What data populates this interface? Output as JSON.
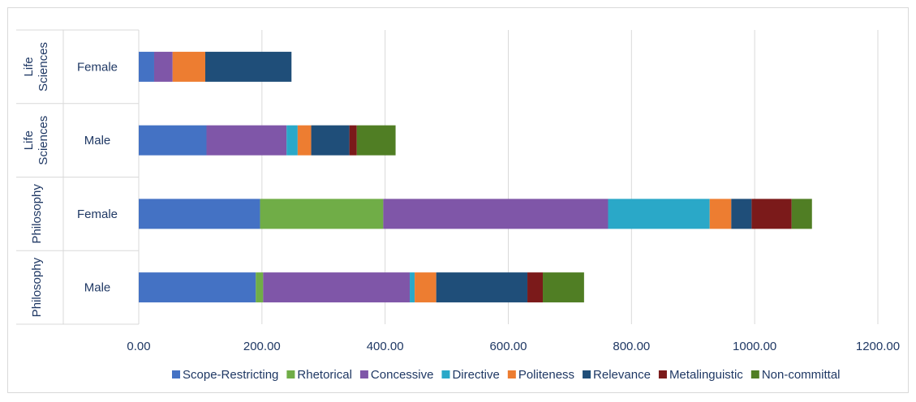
{
  "chart_data": {
    "type": "bar",
    "orientation": "horizontal",
    "stacked": true,
    "title": "",
    "xlabel": "",
    "ylabel": "",
    "xlim": [
      0,
      1200
    ],
    "x_ticks": [
      "0.00",
      "200.00",
      "400.00",
      "600.00",
      "800.00",
      "1000.00",
      "1200.00"
    ],
    "grid": true,
    "legend_position": "bottom",
    "categories": [
      {
        "group": "Life Sciences",
        "label": "Female"
      },
      {
        "group": "Life Sciences",
        "label": "Male"
      },
      {
        "group": "Philosophy",
        "label": "Female"
      },
      {
        "group": "Philosophy",
        "label": "Male"
      }
    ],
    "series": [
      {
        "name": "Scope-Restricting",
        "color": "#4472c4",
        "values": [
          25,
          110,
          197,
          190
        ]
      },
      {
        "name": "Rhetorical",
        "color": "#70ad47",
        "values": [
          0,
          0,
          200,
          12
        ]
      },
      {
        "name": "Concessive",
        "color": "#7f56a8",
        "values": [
          30,
          130,
          365,
          238
        ]
      },
      {
        "name": "Directive",
        "color": "#2aa8c8",
        "values": [
          0,
          18,
          165,
          8
        ]
      },
      {
        "name": "Politeness",
        "color": "#ed7d31",
        "values": [
          53,
          22,
          35,
          35
        ]
      },
      {
        "name": "Relevance",
        "color": "#1f4e79",
        "values": [
          140,
          62,
          33,
          148
        ]
      },
      {
        "name": "Metalinguistic",
        "color": "#7b1a1a",
        "values": [
          0,
          12,
          65,
          25
        ]
      },
      {
        "name": "Non-committal",
        "color": "#507e24",
        "values": [
          0,
          63,
          33,
          67
        ]
      }
    ]
  }
}
